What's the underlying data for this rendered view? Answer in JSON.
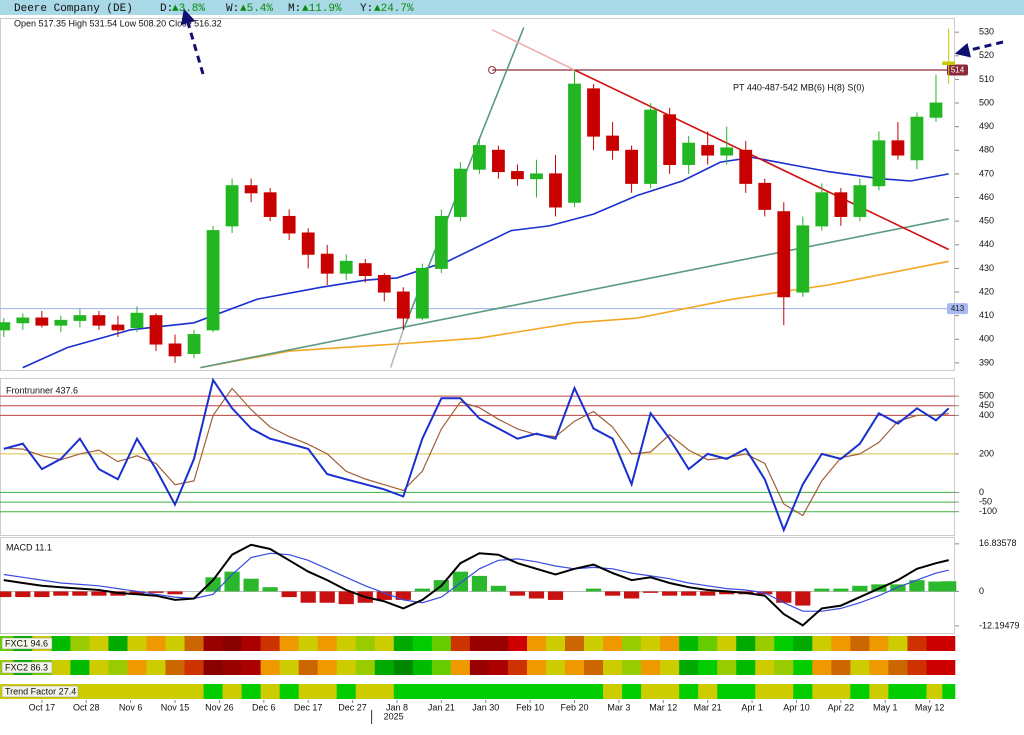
{
  "header": {
    "title": "Deere Company (DE)",
    "changes": [
      {
        "label": "D:",
        "value": "▲3.8%"
      },
      {
        "label": "W:",
        "value": "▲5.4%"
      },
      {
        "label": "M:",
        "value": "▲11.9%"
      },
      {
        "label": "Y:",
        "value": "▲24.7%"
      }
    ]
  },
  "chart_data": [
    {
      "type": "candlestick",
      "ohlc_text": "Open 517.35  High 531.54  Low 508.20  Close 516.32",
      "annotation": "PT 440-487-542 MB(6) H(8) S(0)",
      "xlim": [
        -0.6,
        150
      ],
      "ylim": [
        387,
        536
      ],
      "yticks": [
        390,
        400,
        410,
        420,
        430,
        440,
        450,
        460,
        470,
        480,
        490,
        500,
        510,
        520,
        530
      ],
      "up_color": "#22b622",
      "down_color": "#c80000",
      "neutral_color": "#c8c800",
      "x": [
        0,
        3,
        6,
        9,
        12,
        15,
        18,
        21,
        24,
        27,
        30,
        33,
        36,
        39,
        42,
        45,
        48,
        51,
        54,
        57,
        60,
        63,
        66,
        69,
        72,
        75,
        78,
        81,
        84,
        87,
        90,
        93,
        96,
        99,
        102,
        105,
        108,
        111,
        114,
        117,
        120,
        123,
        126,
        129,
        132,
        135,
        138,
        141,
        144,
        147,
        149
      ],
      "open": [
        404,
        407,
        409,
        406,
        408,
        410,
        406,
        405,
        410,
        398,
        394,
        404,
        448,
        465,
        462,
        452,
        445,
        436,
        428,
        432,
        427,
        420,
        409,
        430,
        452,
        472,
        480,
        471,
        468,
        470,
        458,
        506,
        486,
        480,
        466,
        495,
        474,
        482,
        478,
        480,
        466,
        454,
        420,
        448,
        462,
        452,
        465,
        484,
        476,
        494,
        517.35
      ],
      "high": [
        409,
        411,
        412,
        410,
        413,
        412,
        410,
        414,
        411,
        402,
        404,
        448,
        468,
        468,
        464,
        455,
        447,
        440,
        436,
        434,
        428,
        422,
        432,
        455,
        475,
        485,
        482,
        474,
        476,
        478,
        514,
        508,
        492,
        482,
        500,
        498,
        486,
        488,
        490,
        484,
        468,
        458,
        452,
        466,
        464,
        468,
        488,
        492,
        496,
        512,
        531.54
      ],
      "low": [
        401,
        404,
        405,
        403,
        405,
        404,
        401,
        403,
        395,
        390,
        392,
        403,
        445,
        458,
        450,
        442,
        430,
        423,
        425,
        424,
        416,
        404,
        408,
        428,
        450,
        470,
        468,
        465,
        460,
        452,
        456,
        480,
        476,
        462,
        464,
        470,
        470,
        474,
        474,
        462,
        452,
        406,
        418,
        446,
        448,
        450,
        463,
        476,
        472,
        492,
        508.2
      ],
      "close": [
        407,
        409,
        406,
        408,
        410,
        406,
        404,
        411,
        398,
        393,
        402,
        446,
        465,
        462,
        452,
        445,
        436,
        428,
        433,
        427,
        420,
        409,
        430,
        452,
        472,
        482,
        471,
        468,
        470,
        456,
        508,
        486,
        480,
        466,
        497,
        474,
        483,
        478,
        481,
        466,
        455,
        418,
        448,
        462,
        452,
        465,
        484,
        478,
        494,
        500,
        516.32
      ],
      "levels": [
        {
          "value": 514,
          "color": "#8b2a3a",
          "from_x": 77
        },
        {
          "value": 413,
          "color": "#a8b8f0"
        }
      ],
      "lines": [
        {
          "color": "#1a2fd0",
          "x": [
            3,
            10,
            20,
            30,
            40,
            50,
            57,
            62,
            70,
            80,
            86,
            93,
            100,
            107,
            113,
            118,
            124,
            130,
            138,
            143,
            149
          ],
          "values": [
            388,
            396.5,
            404,
            407,
            417,
            422,
            425,
            426,
            433,
            446,
            448,
            453,
            461,
            467,
            475,
            477,
            474,
            471,
            468,
            467,
            470
          ]
        },
        {
          "color": "#f5a623",
          "x": [
            31,
            45,
            62,
            75,
            90,
            100,
            115,
            130,
            149
          ],
          "values": [
            388,
            395,
            398,
            400.5,
            407,
            409,
            417,
            423,
            433
          ]
        },
        {
          "color": "#5a9a80",
          "x": [
            31,
            149
          ],
          "values": [
            388,
            451
          ]
        },
        {
          "color": "#5a9a80",
          "x": [
            63,
            82
          ],
          "values": [
            404,
            532
          ]
        },
        {
          "color": "#b8b8b8",
          "x": [
            61,
            63
          ],
          "values": [
            388,
            404
          ]
        },
        {
          "color": "#f0b0b0",
          "x": [
            77,
            90
          ],
          "values": [
            531,
            514
          ]
        },
        {
          "color": "#d01010",
          "x": [
            90,
            149
          ],
          "values": [
            514,
            438
          ]
        }
      ]
    },
    {
      "type": "line",
      "title": "Frontrunner 437.6",
      "xlim": [
        -0.6,
        150
      ],
      "ylim": [
        -221,
        589
      ],
      "yticks": [
        500,
        450,
        400,
        200,
        0,
        -50,
        -100
      ],
      "tick_line_colors": [
        "#c04040",
        "#c04040",
        "#c04040",
        "#d8c040",
        "#40b040",
        "#40b040",
        "#40b040"
      ],
      "x": [
        0,
        3,
        6,
        9,
        12,
        15,
        18,
        21,
        24,
        27,
        30,
        33,
        36,
        39,
        42,
        45,
        48,
        51,
        54,
        57,
        60,
        63,
        66,
        69,
        72,
        75,
        78,
        81,
        84,
        87,
        90,
        93,
        96,
        99,
        102,
        105,
        108,
        111,
        114,
        117,
        120,
        123,
        126,
        129,
        132,
        135,
        138,
        141,
        144,
        147,
        149
      ],
      "series": [
        {
          "color": "#a0603a",
          "values": [
            230,
            225,
            190,
            170,
            200,
            220,
            160,
            190,
            150,
            40,
            60,
            400,
            540,
            430,
            340,
            290,
            250,
            200,
            110,
            70,
            40,
            10,
            110,
            330,
            470,
            440,
            380,
            330,
            300,
            290,
            370,
            420,
            340,
            200,
            210,
            300,
            220,
            170,
            180,
            200,
            150,
            -60,
            -120,
            60,
            180,
            200,
            260,
            370,
            400,
            400,
            410
          ]
        },
        {
          "color": "#1a2fd0",
          "values": [
            226,
            253,
            121,
            174,
            279,
            121,
            68,
            279,
            121,
            -63,
            174,
            584,
            437,
            332,
            279,
            253,
            226,
            95,
            68,
            42,
            16,
            -21,
            279,
            489,
            489,
            384,
            332,
            279,
            305,
            279,
            542,
            332,
            279,
            42,
            411,
            279,
            121,
            200,
            174,
            226,
            68,
            -195,
            42,
            200,
            174,
            253,
            411,
            358,
            437,
            374,
            437
          ]
        }
      ]
    },
    {
      "type": "macd",
      "title": "MACD 11.1",
      "xlim": [
        -0.6,
        150
      ],
      "ylim": [
        -14.7,
        18.9
      ],
      "yticks": [
        16.83578,
        0,
        -12.19479
      ],
      "x": [
        0,
        3,
        6,
        9,
        12,
        15,
        18,
        21,
        24,
        27,
        30,
        33,
        36,
        39,
        42,
        45,
        48,
        51,
        54,
        57,
        60,
        63,
        66,
        69,
        72,
        75,
        78,
        81,
        84,
        87,
        90,
        93,
        96,
        99,
        102,
        105,
        108,
        111,
        114,
        117,
        120,
        123,
        126,
        129,
        132,
        135,
        138,
        141,
        144,
        147,
        149
      ],
      "macd": {
        "color": "#000000",
        "values": [
          4,
          3,
          2,
          1.5,
          1,
          0.5,
          -0.5,
          -1,
          -1.5,
          -3,
          -2.5,
          4,
          13,
          16.5,
          15,
          11,
          7,
          4,
          0.5,
          -2,
          -3.5,
          -6,
          -3,
          2,
          10,
          13.5,
          13,
          10,
          8,
          6,
          8,
          9.5,
          6.5,
          4,
          5,
          3,
          1.5,
          0.5,
          0,
          -0.5,
          -1.5,
          -8,
          -12,
          -6,
          -5,
          -2,
          1,
          4,
          8,
          10,
          11.1
        ]
      },
      "signal": {
        "color": "#3a4ae0",
        "values": [
          6,
          5,
          4,
          3,
          2.5,
          2,
          1,
          0,
          -1,
          -2,
          -2.5,
          -1,
          6,
          12,
          13.5,
          13,
          11,
          8,
          5,
          2,
          -0.5,
          -3,
          -4,
          -2,
          3,
          8,
          11,
          11.5,
          10.5,
          9,
          8,
          8.5,
          8,
          6.5,
          5.5,
          4.5,
          3,
          2,
          1,
          0.5,
          -0.5,
          -4,
          -7,
          -7,
          -6,
          -4,
          -1.5,
          1.5,
          4,
          6.5,
          7.5
        ]
      },
      "histogram": {
        "up_color": "#2cb82c",
        "down_color": "#c81010",
        "values": [
          -2,
          -2,
          -2,
          -1.5,
          -1.5,
          -1.5,
          -1.5,
          -1,
          -0.5,
          -1,
          0,
          5,
          7,
          4.5,
          1.5,
          -2,
          -4,
          -4,
          -4.5,
          -4,
          -3,
          -3,
          1,
          4,
          7,
          5.5,
          2,
          -1.5,
          -2.5,
          -3,
          0,
          1,
          -1.5,
          -2.5,
          -0.5,
          -1.5,
          -1.5,
          -1.5,
          -1,
          -1,
          -1,
          -4,
          -5,
          1,
          1,
          2,
          2.5,
          2.5,
          4,
          3.5,
          3.6
        ]
      }
    },
    {
      "type": "heatmap",
      "xlim": [
        -0.6,
        150
      ],
      "x": [
        0,
        3,
        6,
        9,
        12,
        15,
        18,
        21,
        24,
        27,
        30,
        33,
        36,
        39,
        42,
        45,
        48,
        51,
        54,
        57,
        60,
        63,
        66,
        69,
        72,
        75,
        78,
        81,
        84,
        87,
        90,
        93,
        96,
        99,
        102,
        105,
        108,
        111,
        114,
        117,
        120,
        123,
        126,
        129,
        132,
        135,
        138,
        141,
        144,
        147,
        149
      ],
      "rows": [
        {
          "label": "FXC1 94.6",
          "colors": [
            "#6c0",
            "#0a0",
            "#cc0",
            "#0b0",
            "#9c0",
            "#cc0",
            "#0a0",
            "#cc0",
            "#e90",
            "#cc0",
            "#c60",
            "#900",
            "#800",
            "#a00",
            "#c30",
            "#e90",
            "#cc0",
            "#e90",
            "#cc0",
            "#9c0",
            "#cc0",
            "#0a0",
            "#0c0",
            "#6c0",
            "#c30",
            "#900",
            "#900",
            "#c00",
            "#e90",
            "#cc0",
            "#c60",
            "#cc0",
            "#e90",
            "#9c0",
            "#cc0",
            "#e90",
            "#0b0",
            "#6c0",
            "#cc0",
            "#0a0",
            "#9c0",
            "#0c0",
            "#0a0",
            "#cc0",
            "#e90",
            "#c60",
            "#e90",
            "#cc0",
            "#c30",
            "#c00",
            "#c00"
          ]
        },
        {
          "label": "FXC2 86.3",
          "colors": [
            "#9c0",
            "#0a0",
            "#6c0",
            "#cc0",
            "#0b0",
            "#cc0",
            "#9c0",
            "#e90",
            "#cc0",
            "#c60",
            "#c30",
            "#800",
            "#900",
            "#a00",
            "#e90",
            "#cc0",
            "#c60",
            "#e90",
            "#cc0",
            "#9c0",
            "#0a0",
            "#080",
            "#0b0",
            "#6c0",
            "#e90",
            "#900",
            "#a00",
            "#c30",
            "#e90",
            "#cc0",
            "#e90",
            "#c60",
            "#cc0",
            "#9c0",
            "#e90",
            "#cc0",
            "#0a0",
            "#0c0",
            "#9c0",
            "#0b0",
            "#cc0",
            "#9c0",
            "#0c0",
            "#e90",
            "#c60",
            "#cc0",
            "#e90",
            "#c60",
            "#c30",
            "#c00",
            "#c00"
          ]
        },
        {
          "label": "Trend Factor 27.4",
          "colors": [
            "#cc0",
            "#cc0",
            "#cc0",
            "#cc0",
            "#cc0",
            "#cc0",
            "#cc0",
            "#cc0",
            "#cc0",
            "#cc0",
            "#cc0",
            "#0c0",
            "#cc0",
            "#0c0",
            "#cc0",
            "#0c0",
            "#cc0",
            "#cc0",
            "#0c0",
            "#cc0",
            "#cc0",
            "#0c0",
            "#0c0",
            "#0c0",
            "#0c0",
            "#0c0",
            "#0c0",
            "#0c0",
            "#0c0",
            "#0c0",
            "#0c0",
            "#0c0",
            "#cc0",
            "#0c0",
            "#cc0",
            "#cc0",
            "#0c0",
            "#cc0",
            "#0c0",
            "#0c0",
            "#cc0",
            "#cc0",
            "#0c0",
            "#cc0",
            "#cc0",
            "#0c0",
            "#cc0",
            "#0c0",
            "#0c0",
            "#cc0",
            "#0c0"
          ]
        }
      ],
      "xticks": [
        {
          "value": 6,
          "label": "Oct 17"
        },
        {
          "value": 13,
          "label": "Oct 28"
        },
        {
          "value": 20,
          "label": "Nov 6"
        },
        {
          "value": 27,
          "label": "Nov 15"
        },
        {
          "value": 34,
          "label": "Nov 26"
        },
        {
          "value": 41,
          "label": "Dec 6"
        },
        {
          "value": 48,
          "label": "Dec 17"
        },
        {
          "value": 55,
          "label": "Dec 27"
        },
        {
          "value": 62,
          "label": "Jan 8"
        },
        {
          "value": 69,
          "label": "Jan 21"
        },
        {
          "value": 76,
          "label": "Jan 30"
        },
        {
          "value": 83,
          "label": "Feb 10"
        },
        {
          "value": 90,
          "label": "Feb 20"
        },
        {
          "value": 97,
          "label": "Mar 3"
        },
        {
          "value": 104,
          "label": "Mar 12"
        },
        {
          "value": 111,
          "label": "Mar 21"
        },
        {
          "value": 118,
          "label": "Apr 1"
        },
        {
          "value": 125,
          "label": "Apr 10"
        },
        {
          "value": 132,
          "label": "Apr 22"
        },
        {
          "value": 139,
          "label": "May 1"
        },
        {
          "value": 146,
          "label": "May 12"
        }
      ],
      "year_tick": {
        "value": 58,
        "label": "2025"
      }
    }
  ]
}
